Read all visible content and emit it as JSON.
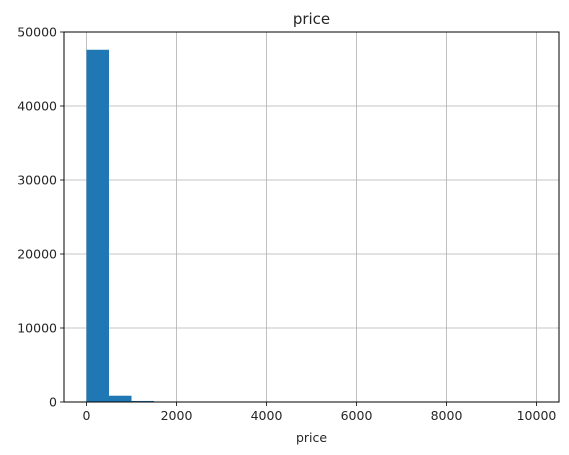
{
  "chart_data": {
    "type": "bar",
    "histogram": true,
    "title": "price",
    "xlabel": "price",
    "ylabel": "",
    "xlim": [
      -500,
      10500
    ],
    "ylim": [
      0,
      50000
    ],
    "xticks": [
      0,
      2000,
      4000,
      6000,
      8000,
      10000
    ],
    "yticks": [
      0,
      10000,
      20000,
      30000,
      40000,
      50000
    ],
    "xtick_labels": [
      "0",
      "2000",
      "4000",
      "6000",
      "8000",
      "10000"
    ],
    "ytick_labels": [
      "0",
      "10000",
      "20000",
      "30000",
      "40000",
      "50000"
    ],
    "grid": true,
    "bin_width": 500,
    "bins": [
      {
        "x0": 0,
        "x1": 500,
        "count": 47600
      },
      {
        "x0": 500,
        "x1": 1000,
        "count": 850
      },
      {
        "x0": 1000,
        "x1": 1500,
        "count": 140
      },
      {
        "x0": 1500,
        "x1": 2000,
        "count": 60
      },
      {
        "x0": 2000,
        "x1": 2500,
        "count": 50
      },
      {
        "x0": 2500,
        "x1": 3000,
        "count": 20
      },
      {
        "x0": 3000,
        "x1": 3500,
        "count": 12
      },
      {
        "x0": 3500,
        "x1": 4000,
        "count": 8
      },
      {
        "x0": 4000,
        "x1": 4500,
        "count": 6
      },
      {
        "x0": 4500,
        "x1": 5000,
        "count": 5
      },
      {
        "x0": 5000,
        "x1": 5500,
        "count": 4
      },
      {
        "x0": 5500,
        "x1": 6000,
        "count": 3
      },
      {
        "x0": 6000,
        "x1": 6500,
        "count": 3
      },
      {
        "x0": 6500,
        "x1": 7000,
        "count": 2
      },
      {
        "x0": 7000,
        "x1": 7500,
        "count": 2
      },
      {
        "x0": 7500,
        "x1": 8000,
        "count": 2
      },
      {
        "x0": 8000,
        "x1": 8500,
        "count": 2
      },
      {
        "x0": 8500,
        "x1": 9000,
        "count": 1
      },
      {
        "x0": 9000,
        "x1": 9500,
        "count": 1
      },
      {
        "x0": 9500,
        "x1": 10000,
        "count": 3
      }
    ],
    "colors": {
      "bar": "#1f77b4",
      "grid": "#b0b0b0",
      "axis": "#000000",
      "text": "#262626"
    }
  }
}
